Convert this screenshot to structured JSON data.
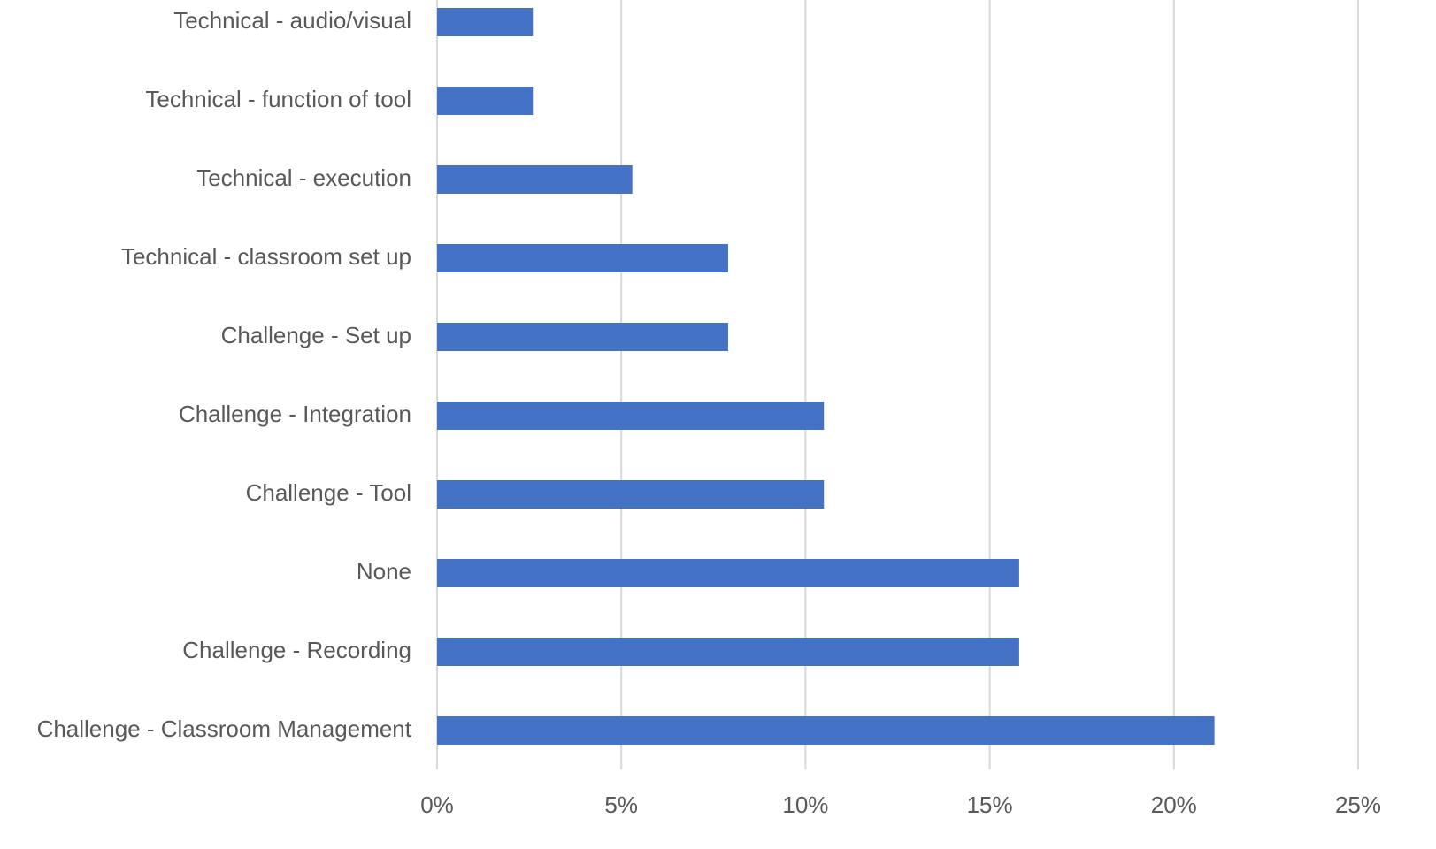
{
  "chart_data": {
    "type": "bar",
    "orientation": "horizontal",
    "categories": [
      "Technical - audio/visual",
      "Technical - function of tool",
      "Technical - execution",
      "Technical - classroom set up",
      "Challenge - Set up",
      "Challenge - Integration",
      "Challenge - Tool",
      "None",
      "Challenge - Recording",
      "Challenge - Classroom Management"
    ],
    "values": [
      2.6,
      2.6,
      5.3,
      7.9,
      7.9,
      10.5,
      10.5,
      15.8,
      15.8,
      21.1
    ],
    "color": "#4472c4",
    "xlim": [
      0,
      25
    ],
    "xticks": [
      {
        "value": 0,
        "label": "0%"
      },
      {
        "value": 5,
        "label": "5%"
      },
      {
        "value": 10,
        "label": "10%"
      },
      {
        "value": 15,
        "label": "15%"
      },
      {
        "value": 20,
        "label": "20%"
      },
      {
        "value": 25,
        "label": "25%"
      }
    ],
    "grid": true
  }
}
